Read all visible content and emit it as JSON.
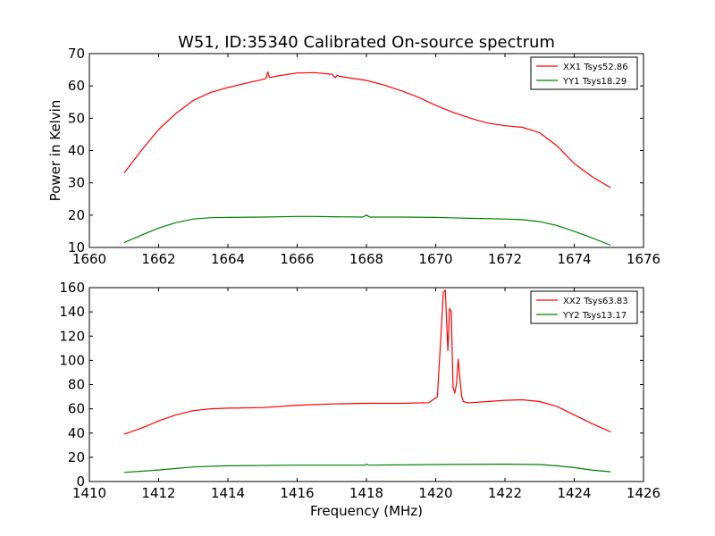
{
  "title": "W51, ID:35340 Calibrated On-source spectrum",
  "chart_data": [
    {
      "type": "line",
      "title": "W51, ID:35340 Calibrated On-source spectrum",
      "xlabel": "",
      "ylabel": "Power in Kelvin",
      "xlim": [
        1660,
        1676
      ],
      "ylim": [
        10,
        70
      ],
      "xticks": [
        "1660",
        "1662",
        "1664",
        "1666",
        "1668",
        "1670",
        "1672",
        "1674",
        "1676"
      ],
      "yticks": [
        "10",
        "20",
        "30",
        "40",
        "50",
        "60",
        "70"
      ],
      "grid": false,
      "legend_position": "top-right",
      "series": [
        {
          "name": "XX1 Tsys52.86",
          "color": "#ff0000",
          "x": [
            1661.0,
            1661.5,
            1662.0,
            1662.5,
            1663.0,
            1663.5,
            1664.0,
            1664.5,
            1665.0,
            1665.1,
            1665.15,
            1665.2,
            1665.5,
            1666.0,
            1666.5,
            1667.0,
            1667.1,
            1667.15,
            1667.2,
            1667.5,
            1668.0,
            1668.5,
            1669.0,
            1669.5,
            1670.0,
            1670.5,
            1671.0,
            1671.5,
            1672.0,
            1672.5,
            1673.0,
            1673.5,
            1674.0,
            1674.5,
            1675.05
          ],
          "y": [
            33,
            40,
            46.5,
            51.5,
            55.5,
            58,
            59.5,
            60.8,
            62,
            62.3,
            64.3,
            62.6,
            63.2,
            64,
            64.1,
            63.6,
            62.5,
            63.3,
            63,
            62.5,
            61.7,
            60.3,
            58.5,
            56.5,
            54,
            51.8,
            50,
            48.5,
            47.7,
            47.2,
            45.5,
            41.5,
            36,
            32,
            28.5
          ]
        },
        {
          "name": "YY1 Tsys18.29",
          "color": "#008000",
          "x": [
            1661.0,
            1661.5,
            1662.0,
            1662.5,
            1663.0,
            1663.5,
            1664.0,
            1665.0,
            1666.0,
            1666.5,
            1667.0,
            1667.9,
            1668.0,
            1668.1,
            1669.0,
            1670.0,
            1671.0,
            1672.0,
            1672.5,
            1673.0,
            1673.5,
            1674.0,
            1674.5,
            1675.05
          ],
          "y": [
            11.5,
            13.8,
            16,
            17.7,
            18.8,
            19.2,
            19.3,
            19.4,
            19.6,
            19.6,
            19.5,
            19.4,
            20.0,
            19.4,
            19.4,
            19.3,
            19,
            18.8,
            18.6,
            18,
            16.8,
            15,
            13,
            10.7
          ]
        }
      ]
    },
    {
      "type": "line",
      "title": "",
      "xlabel": "Frequency (MHz)",
      "ylabel": "",
      "xlim": [
        1410,
        1426
      ],
      "ylim": [
        0,
        160
      ],
      "xticks": [
        "1410",
        "1412",
        "1414",
        "1416",
        "1418",
        "1420",
        "1422",
        "1424",
        "1426"
      ],
      "yticks": [
        "0",
        "20",
        "40",
        "60",
        "80",
        "100",
        "120",
        "140",
        "160"
      ],
      "grid": false,
      "legend_position": "top-right",
      "series": [
        {
          "name": "XX2 Tsys63.83",
          "color": "#ff0000",
          "x": [
            1411.0,
            1411.5,
            1412.0,
            1412.5,
            1413.0,
            1413.5,
            1414.0,
            1415.0,
            1416.0,
            1417.0,
            1418.0,
            1419.0,
            1419.8,
            1420.05,
            1420.15,
            1420.22,
            1420.28,
            1420.35,
            1420.4,
            1420.45,
            1420.5,
            1420.55,
            1420.6,
            1420.65,
            1420.7,
            1420.75,
            1420.8,
            1420.9,
            1421.0,
            1421.5,
            1422.0,
            1422.5,
            1423.0,
            1423.5,
            1424.0,
            1424.5,
            1425.05
          ],
          "y": [
            39,
            44,
            50,
            55,
            58.5,
            60,
            60.5,
            61,
            63,
            64,
            64.5,
            64.5,
            65,
            70,
            120,
            156,
            158,
            108,
            143,
            140,
            78,
            73,
            80,
            101,
            85,
            70,
            66,
            65,
            65,
            66,
            67,
            67.5,
            66,
            62,
            55,
            48,
            41
          ]
        },
        {
          "name": "YY2 Tsys13.17",
          "color": "#008000",
          "x": [
            1411.0,
            1412.0,
            1413.0,
            1414.0,
            1416.0,
            1417.95,
            1418.0,
            1418.05,
            1420.0,
            1422.0,
            1423.0,
            1423.5,
            1424.0,
            1424.5,
            1425.05
          ],
          "y": [
            7.5,
            9.5,
            12,
            13,
            13.5,
            13.5,
            14.5,
            13.5,
            14,
            14.3,
            14,
            13,
            11.5,
            9.5,
            8
          ]
        }
      ]
    }
  ]
}
